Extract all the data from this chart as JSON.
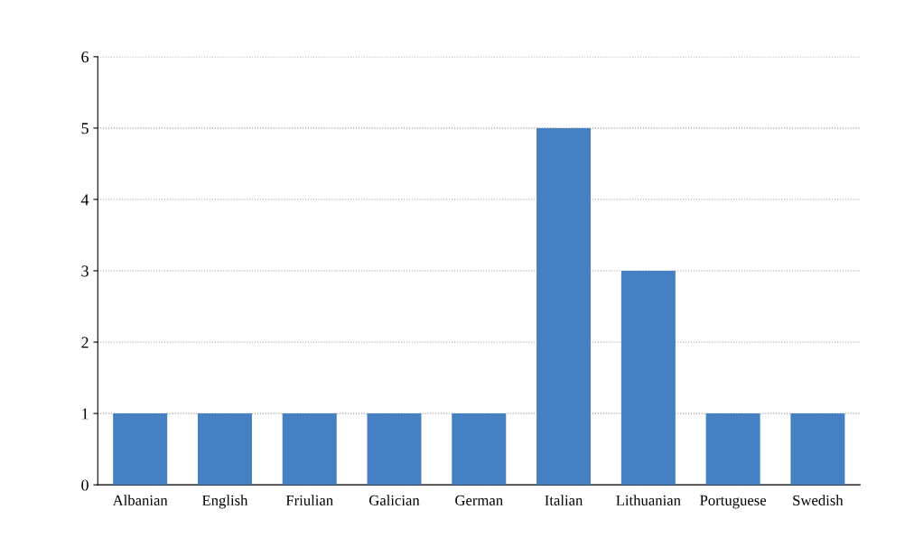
{
  "chart_data": {
    "type": "bar",
    "categories": [
      "Albanian",
      "English",
      "Friulian",
      "Galician",
      "German",
      "Italian",
      "Lithuanian",
      "Portuguese",
      "Swedish"
    ],
    "values": [
      1,
      1,
      1,
      1,
      1,
      5,
      3,
      1,
      1
    ],
    "color": "#4580c2",
    "ylim": [
      0,
      6
    ],
    "yticks": [
      0,
      1,
      2,
      3,
      4,
      5,
      6
    ],
    "grid": "y"
  }
}
